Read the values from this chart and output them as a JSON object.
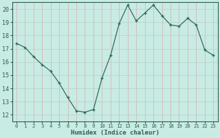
{
  "x": [
    0,
    1,
    2,
    3,
    4,
    5,
    6,
    7,
    8,
    9,
    10,
    11,
    12,
    13,
    14,
    15,
    16,
    17,
    18,
    19,
    20,
    21,
    22,
    23
  ],
  "y": [
    17.4,
    17.1,
    16.4,
    15.8,
    15.3,
    14.4,
    13.3,
    12.3,
    12.2,
    12.4,
    14.8,
    16.5,
    18.9,
    20.3,
    19.1,
    19.7,
    20.3,
    19.5,
    18.8,
    18.7,
    19.3,
    18.8,
    16.9,
    16.5
  ],
  "line_color": "#2e6b5e",
  "bg_color": "#c8ebe3",
  "grid_color_v": "#d4b8b8",
  "grid_color_h": "#b8d4cc",
  "xlabel": "Humidex (Indice chaleur)",
  "ylim": [
    11.5,
    20.5
  ],
  "xlim": [
    -0.5,
    23.5
  ],
  "yticks": [
    12,
    13,
    14,
    15,
    16,
    17,
    18,
    19,
    20
  ],
  "xticks": [
    0,
    1,
    2,
    3,
    4,
    5,
    6,
    7,
    8,
    9,
    10,
    11,
    12,
    13,
    14,
    15,
    16,
    17,
    18,
    19,
    20,
    21,
    22,
    23
  ],
  "font_color": "#2e5c50",
  "tick_color": "#2e5c50"
}
